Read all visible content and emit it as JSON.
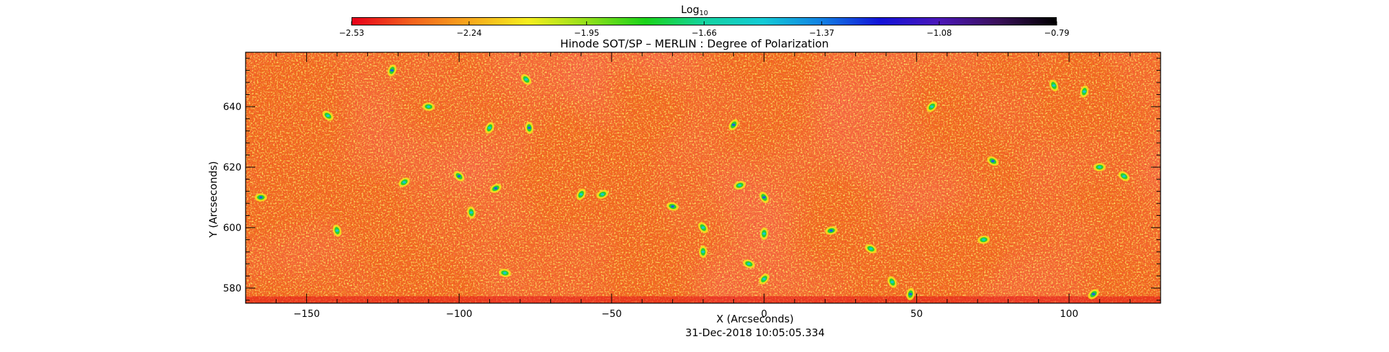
{
  "colorbar": {
    "title_base": "Log",
    "title_sub": "10",
    "ticks": [
      "-2.53",
      "-2.24",
      "-1.95",
      "-1.66",
      "-1.37",
      "-1.08",
      "-0.79"
    ],
    "colors": [
      "#e8001a",
      "#f3601c",
      "#f7a81c",
      "#f5ee1e",
      "#93e01a",
      "#19d319",
      "#14d3a0",
      "#13cbd6",
      "#1180e3",
      "#1212d8",
      "#4b16b8",
      "#3a105a",
      "#000000"
    ]
  },
  "chart_data": {
    "type": "heatmap",
    "title": "Hinode SOT/SP – MERLIN : Degree of Polarization",
    "xlabel": "X (Arcseconds)",
    "ylabel": "Y (Arcseconds)",
    "xlim": [
      -170,
      130
    ],
    "ylim": [
      575,
      658
    ],
    "xticks": [
      -150,
      -100,
      -50,
      0,
      50,
      100
    ],
    "yticks": [
      580,
      600,
      620,
      640
    ],
    "colorbar_range": [
      -2.53,
      -0.79
    ],
    "background_color": "#f06a1e",
    "magnetic_patches": [
      {
        "x": -165,
        "y": 610
      },
      {
        "x": -143,
        "y": 637
      },
      {
        "x": -140,
        "y": 599
      },
      {
        "x": -122,
        "y": 652
      },
      {
        "x": -118,
        "y": 615
      },
      {
        "x": -110,
        "y": 640
      },
      {
        "x": -100,
        "y": 617
      },
      {
        "x": -96,
        "y": 605
      },
      {
        "x": -90,
        "y": 633
      },
      {
        "x": -88,
        "y": 613
      },
      {
        "x": -85,
        "y": 585
      },
      {
        "x": -78,
        "y": 649
      },
      {
        "x": -77,
        "y": 633
      },
      {
        "x": -60,
        "y": 611
      },
      {
        "x": -53,
        "y": 611
      },
      {
        "x": -30,
        "y": 607
      },
      {
        "x": -20,
        "y": 600
      },
      {
        "x": -20,
        "y": 592
      },
      {
        "x": -10,
        "y": 634
      },
      {
        "x": -8,
        "y": 614
      },
      {
        "x": -5,
        "y": 588
      },
      {
        "x": 0,
        "y": 610
      },
      {
        "x": 0,
        "y": 598
      },
      {
        "x": 0,
        "y": 583
      },
      {
        "x": 22,
        "y": 599
      },
      {
        "x": 35,
        "y": 593
      },
      {
        "x": 42,
        "y": 582
      },
      {
        "x": 48,
        "y": 578
      },
      {
        "x": 55,
        "y": 640
      },
      {
        "x": 72,
        "y": 596
      },
      {
        "x": 75,
        "y": 622
      },
      {
        "x": 95,
        "y": 647
      },
      {
        "x": 105,
        "y": 645
      },
      {
        "x": 108,
        "y": 578
      },
      {
        "x": 110,
        "y": 620
      },
      {
        "x": 118,
        "y": 617
      }
    ]
  },
  "timestamp": "31-Dec-2018 10:05:05.334"
}
